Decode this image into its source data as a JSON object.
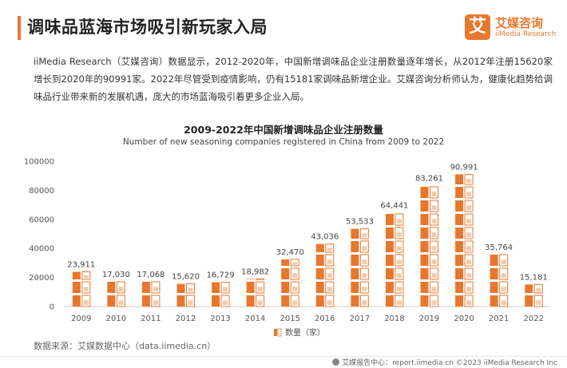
{
  "header": {
    "title": "调味品蓝海市场吸引新玩家入局",
    "logo_mark": "艾",
    "logo_cn": "艾媒咨询",
    "logo_en": "iiMedia Research"
  },
  "intro_text": "iiMedia Research（艾媒咨询）数据显示，2012-2020年，中国新增调味品企业注册数量逐年增长，从2012年注册15620家增长到2020年的90991家。2022年尽管受到疫情影响，仍有15181家调味品新增企业。艾媒咨询分析师认为，健康化趋势给调味品行业带来新的发展机遇，庞大的市场蓝海吸引着更多企业入局。",
  "chart_data": {
    "type": "bar",
    "title": "2009-2022年中国新增调味品企业注册数量",
    "subtitle": "Number of new seasoning companies registered in China from 2009 to 2022",
    "categories": [
      "2009",
      "2010",
      "2011",
      "2012",
      "2013",
      "2014",
      "2015",
      "2016",
      "2017",
      "2018",
      "2019",
      "2020",
      "2021",
      "2022"
    ],
    "series": [
      {
        "name": "数量（家）",
        "values": [
          23911,
          17030,
          17068,
          15620,
          16729,
          18982,
          32470,
          43036,
          53533,
          64441,
          83261,
          90991,
          35764,
          15181
        ],
        "labels": [
          "23,911",
          "17,030",
          "17,068",
          "15,620",
          "16,729",
          "18,982",
          "32,470",
          "43,036",
          "53,533",
          "64,441",
          "83,261",
          "90,991",
          "35,764",
          "15,181"
        ]
      }
    ],
    "yticks": [
      "0",
      "20000",
      "40000",
      "60000",
      "80000",
      "100000"
    ],
    "ylim": [
      0,
      100000
    ],
    "grid": false,
    "legend": "bottom",
    "colors": {
      "bar": "#e8772e",
      "bar_light": "#f5c9a6",
      "axis": "#cccccc",
      "label": "#444444"
    }
  },
  "source_text": "数据来源：艾媒数据中心（data.iimedia.cn）",
  "footer_text": "艾媒报告中心：report.iimedia.cn ©2023  iiMedia Research Inc"
}
